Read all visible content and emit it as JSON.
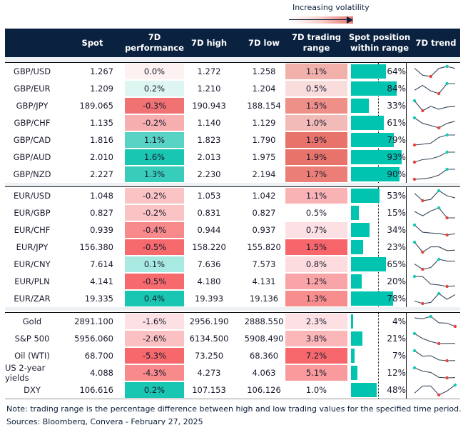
{
  "legend": {
    "label": "Increasing volatility"
  },
  "header": {
    "spot": "Spot",
    "perf_1": "7D",
    "perf_2": "performance",
    "high": "7D high",
    "low": "7D low",
    "range_1": "7D trading",
    "range_2": "range",
    "position_1": "Spot position",
    "position_2": "within range",
    "trend": "7D trend"
  },
  "colors": {
    "header_bg": "#0a2240",
    "bar": "#00c4b0",
    "max_marker": "#19c9b5",
    "min_marker": "#e8433c",
    "line": "#3a4a5c"
  },
  "groups": [
    {
      "rows": [
        {
          "name": "GBP/USD",
          "spot": "1.267",
          "perf": "0.0%",
          "perf_color": "#fdf1f1",
          "high": "1.272",
          "low": "1.258",
          "range": "1.1%",
          "range_color": "#f2b0aa",
          "position": 0.64,
          "position_label": "64%",
          "trend": [
            0.82,
            0.12,
            0,
            0.8,
            1,
            0.8
          ]
        },
        {
          "name": "GBP/EUR",
          "spot": "1.209",
          "perf": "0.2%",
          "perf_color": "#def6f2",
          "high": "1.210",
          "low": "1.204",
          "range": "0.5%",
          "range_color": "#f9dcdc",
          "position": 0.84,
          "position_label": "84%",
          "trend": [
            0.33,
            0.82,
            0.26,
            0,
            1,
            1
          ]
        },
        {
          "name": "GBP/JPY",
          "spot": "189.065",
          "perf": "-0.3%",
          "perf_color": "#f07272",
          "high": "190.943",
          "low": "188.154",
          "range": "1.5%",
          "range_color": "#ee8f88",
          "position": 0.33,
          "position_label": "33%",
          "trend": [
            1,
            0,
            0.44,
            0.15,
            0.37,
            0.44
          ]
        },
        {
          "name": "GBP/CHF",
          "spot": "1.135",
          "perf": "-0.2%",
          "perf_color": "#f7aeae",
          "high": "1.140",
          "low": "1.129",
          "range": "1.0%",
          "range_color": "#f3bbb7",
          "position": 0.61,
          "position_label": "61%",
          "trend": [
            1,
            0.45,
            0.24,
            0,
            0.45,
            0.66
          ]
        },
        {
          "name": "GBP/CAD",
          "spot": "1.816",
          "perf": "1.1%",
          "perf_color": "#58d3c4",
          "high": "1.823",
          "low": "1.790",
          "range": "1.9%",
          "range_color": "#e8736b",
          "position": 0.79,
          "position_label": "79%",
          "trend": [
            0,
            0.08,
            0.18,
            0.76,
            1,
            1
          ]
        },
        {
          "name": "GBP/AUD",
          "spot": "2.010",
          "perf": "1.6%",
          "perf_color": "#19c6b1",
          "high": "2.013",
          "low": "1.975",
          "range": "1.9%",
          "range_color": "#e8736b",
          "position": 0.93,
          "position_label": "93%",
          "trend": [
            0,
            0.26,
            0.33,
            0.56,
            1,
            1
          ]
        },
        {
          "name": "GBP/NZD",
          "spot": "2.227",
          "perf": "1.3%",
          "perf_color": "#38ccbb",
          "high": "2.230",
          "low": "2.194",
          "range": "1.7%",
          "range_color": "#eb7f78",
          "position": 0.9,
          "position_label": "90%",
          "trend": [
            0,
            0.05,
            0.16,
            0.42,
            1,
            1
          ]
        }
      ]
    },
    {
      "rows": [
        {
          "name": "EUR/USD",
          "spot": "1.048",
          "perf": "-0.2%",
          "perf_color": "#fbc4c4",
          "high": "1.053",
          "low": "1.042",
          "range": "1.1%",
          "range_color": "#f9b3b5",
          "position": 0.53,
          "position_label": "53%",
          "trend": [
            0.74,
            0,
            0.13,
            1,
            0.49,
            0.28
          ]
        },
        {
          "name": "EUR/GBP",
          "spot": "0.827",
          "perf": "-0.2%",
          "perf_color": "#fbc4c4",
          "high": "0.831",
          "low": "0.827",
          "range": "0.5%",
          "range_color": "#ffffff",
          "position": 0.15,
          "position_label": "15%",
          "trend": [
            0.64,
            0.21,
            0.69,
            1,
            0,
            0
          ]
        },
        {
          "name": "EUR/CHF",
          "spot": "0.939",
          "perf": "-0.4%",
          "perf_color": "#f88a8b",
          "high": "0.944",
          "low": "0.937",
          "range": "0.7%",
          "range_color": "#fde0e3",
          "position": 0.34,
          "position_label": "34%",
          "trend": [
            1,
            0.28,
            0.2,
            0.15,
            0,
            0.13
          ]
        },
        {
          "name": "EUR/JPY",
          "spot": "156.380",
          "perf": "-0.5%",
          "perf_color": "#f66a6d",
          "high": "158.220",
          "low": "155.820",
          "range": "1.5%",
          "range_color": "#f6666b",
          "position": 0.23,
          "position_label": "23%",
          "trend": [
            1,
            0,
            0.53,
            0.53,
            0.15,
            0.2
          ]
        },
        {
          "name": "EUR/CNY",
          "spot": "7.614",
          "perf": "0.1%",
          "perf_color": "#a8e9e2",
          "high": "7.636",
          "low": "7.573",
          "range": "0.8%",
          "range_color": "#fddcdf",
          "position": 0.65,
          "position_label": "65%",
          "trend": [
            0.53,
            0,
            0.18,
            1,
            0.82,
            0.82
          ]
        },
        {
          "name": "EUR/PLN",
          "spot": "4.141",
          "perf": "-0.5%",
          "perf_color": "#f66a6d",
          "high": "4.180",
          "low": "4.131",
          "range": "1.2%",
          "range_color": "#f9a4a6",
          "position": 0.2,
          "position_label": "20%",
          "trend": [
            1,
            0.98,
            0.23,
            0.15,
            0,
            0.05
          ]
        },
        {
          "name": "EUR/ZAR",
          "spot": "19.335",
          "perf": "0.4%",
          "perf_color": "#19c6b1",
          "high": "19.393",
          "low": "19.136",
          "range": "1.3%",
          "range_color": "#f88d8e",
          "position": 0.78,
          "position_label": "78%",
          "trend": [
            0.26,
            0,
            0.11,
            1,
            0.42,
            0.89
          ]
        }
      ]
    },
    {
      "rows": [
        {
          "name": "Gold",
          "spot": "2891.100",
          "perf": "-1.6%",
          "perf_color": "#fde0e3",
          "high": "2956.190",
          "low": "2888.550",
          "range": "2.3%",
          "range_color": "#fde0e3",
          "position": 0.04,
          "position_label": "4%",
          "trend": [
            0.85,
            0.77,
            1,
            0.36,
            0.33,
            0
          ]
        },
        {
          "name": "S&P 500",
          "spot": "5956.060",
          "perf": "-2.6%",
          "perf_color": "#fbc0c1",
          "high": "6134.500",
          "low": "5908.490",
          "range": "3.8%",
          "range_color": "#fbb6b8",
          "position": 0.21,
          "position_label": "21%",
          "trend": [
            1,
            0.5,
            0.2,
            0,
            0.01,
            0.01
          ]
        },
        {
          "name": "Oil (WTI)",
          "spot": "68.700",
          "perf": "-5.3%",
          "perf_color": "#f6686b",
          "high": "73.250",
          "low": "68.360",
          "range": "7.2%",
          "range_color": "#f6686b",
          "position": 0.07,
          "position_label": "7%",
          "trend": [
            1,
            0.45,
            0.5,
            0.08,
            0,
            0.02
          ]
        },
        {
          "name": "US 2-year yields",
          "spot": "4.088",
          "perf": "-4.3%",
          "perf_color": "#f88a8b",
          "high": "4.273",
          "low": "4.063",
          "range": "5.1%",
          "range_color": "#f99b9d",
          "position": 0.12,
          "position_label": "12%",
          "trend": [
            1,
            0.67,
            0.54,
            0.05,
            0,
            0.03
          ]
        },
        {
          "name": "DXY",
          "spot": "106.616",
          "perf": "0.2%",
          "perf_color": "#19c6b1",
          "high": "107.153",
          "low": "106.126",
          "range": "1.0%",
          "range_color": "#ffffff",
          "position": 0.48,
          "position_label": "48%",
          "trend": [
            0.18,
            0.9,
            0.9,
            0,
            0.4,
            1
          ]
        }
      ]
    }
  ],
  "footer": {
    "note": "Note: trading range is the percentage difference between high and low trading values for the specified time period.",
    "sources": "Sources: Bloomberg, Convera - February 27, 2025"
  }
}
